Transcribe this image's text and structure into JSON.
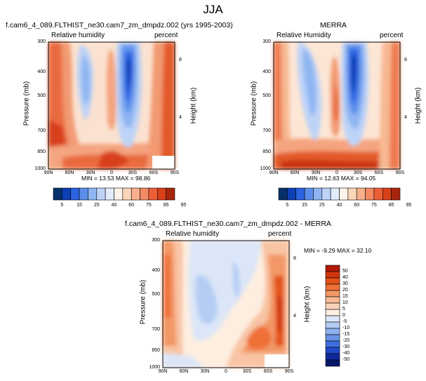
{
  "title": "JJA",
  "chart_data": [
    {
      "type": "contour",
      "id": "model",
      "title": "f.cam6_4_089.FLTHIST_ne30.cam7_zm_dmpdz.002 (yrs 1995-2003)",
      "variable": "Relative humidity",
      "units": "percent",
      "ylabel": "Pressure (mb)",
      "ylabel_right": "Height (km)",
      "x_ticks": [
        "90N",
        "60N",
        "30N",
        "0",
        "30S",
        "60S",
        "90S"
      ],
      "y_ticks": [
        "300",
        "400",
        "500",
        "700",
        "850",
        "1000"
      ],
      "y_ticks_right": [
        "8",
        "4"
      ],
      "min_max_text": "MIN = 13.53   MAX = 98.86",
      "min": 13.53,
      "max": 98.86
    },
    {
      "type": "contour",
      "id": "obs",
      "title": "MERRA",
      "variable": "Relative Humidity",
      "units": "percent",
      "ylabel": "Pressure (mb)",
      "ylabel_right": "Height (km)",
      "x_ticks": [
        "90N",
        "60N",
        "30N",
        "0",
        "30S",
        "60S",
        "90S"
      ],
      "y_ticks": [
        "300",
        "400",
        "500",
        "700",
        "850",
        "1000"
      ],
      "y_ticks_right": [
        "8",
        "4"
      ],
      "min_max_text": "MIN = 12.63   MAX = 94.05",
      "min": 12.63,
      "max": 94.05
    },
    {
      "type": "contour",
      "id": "diff",
      "title": "f.cam6_4_089.FLTHIST_ne30.cam7_zm_dmpdz.002 - MERRA",
      "variable": "Relative humidity",
      "units": "percent",
      "ylabel": "Pressure (mb)",
      "ylabel_right": "Height (km)",
      "x_ticks": [
        "90N",
        "60N",
        "30N",
        "0",
        "30S",
        "60S",
        "90S"
      ],
      "y_ticks": [
        "300",
        "400",
        "500",
        "700",
        "850",
        "1000"
      ],
      "y_ticks_right": [
        "8",
        "4"
      ],
      "min_max_text": "MIN = -9.29   MAX = 32.10",
      "min": -9.29,
      "max": 32.1
    }
  ],
  "colorbar_main": {
    "labels": [
      "5",
      "15",
      "25",
      "40",
      "60",
      "75",
      "85",
      "95"
    ],
    "colors": [
      "#08306b",
      "#0d3fb5",
      "#2a62e0",
      "#5b8eeb",
      "#8fb5f2",
      "#bdd3f7",
      "#e3ecfb",
      "#fdf3e8",
      "#fbd5b8",
      "#f8b08c",
      "#f48a63",
      "#ed5f36",
      "#d8401a",
      "#a8250d"
    ]
  },
  "colorbar_diff": {
    "labels": [
      "50",
      "40",
      "30",
      "20",
      "15",
      "10",
      "5",
      "0",
      "-5",
      "-10",
      "-15",
      "-20",
      "-30",
      "-40",
      "-50"
    ],
    "colors": [
      "#b01a07",
      "#d0350f",
      "#e35218",
      "#ef7138",
      "#f39766",
      "#f7b892",
      "#fad4b8",
      "#fdeee0",
      "#dbe6f8",
      "#b5cdf4",
      "#8fb2ee",
      "#6893e6",
      "#3d6fde",
      "#2149c7",
      "#0e2a9c",
      "#07186b"
    ]
  }
}
